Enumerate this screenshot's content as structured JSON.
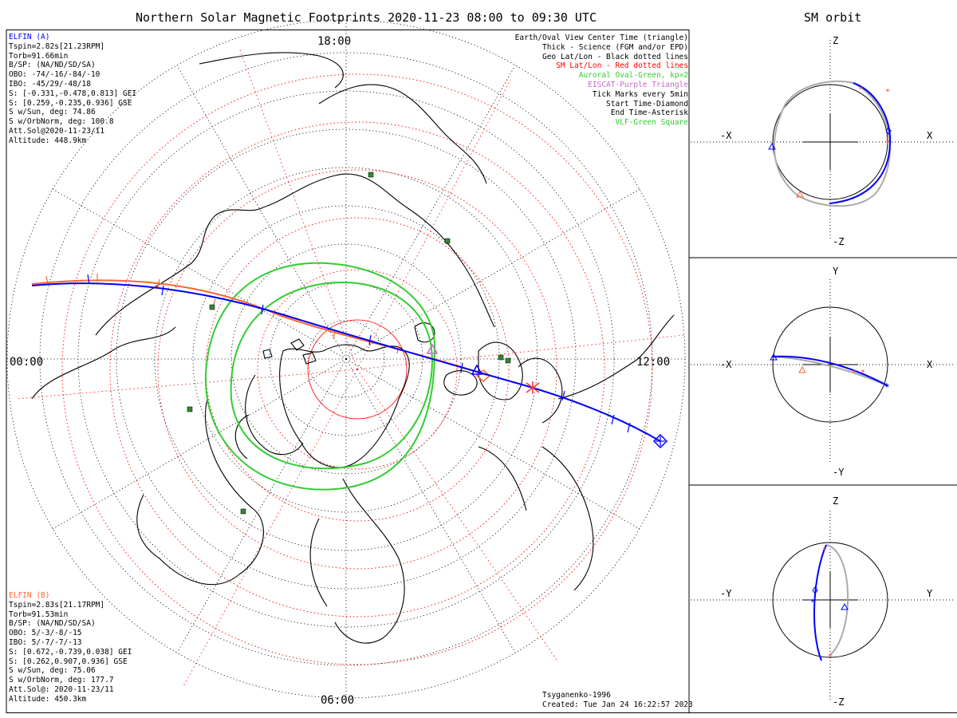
{
  "title": "Northern Solar Magnetic Footprints 2020-11-23 08:00 to 09:30 UTC",
  "orbit_title": "SM orbit",
  "clock_labels": {
    "top": "18:00",
    "left": "00:00",
    "right": "12:00",
    "bottom": "06:00"
  },
  "legend": [
    {
      "text": "Earth/Oval View Center Time (triangle)",
      "color": "#000000"
    },
    {
      "text": "Thick - Science (FGM and/or EPD)",
      "color": "#000000"
    },
    {
      "text": "Geo Lat/Lon - Black dotted lines",
      "color": "#000000"
    },
    {
      "text": "SM Lat/Lon - Red dotted lines",
      "color": "#ff0000"
    },
    {
      "text": "Auroral Oval-Green, kp=2",
      "color": "#33cc33"
    },
    {
      "text": "EISCAT-Purple Triangle",
      "color": "#cc66cc"
    },
    {
      "text": "Tick Marks every 5min",
      "color": "#000000"
    },
    {
      "text": "Start Time-Diamond",
      "color": "#000000"
    },
    {
      "text": "End Time-Asterisk",
      "color": "#000000"
    },
    {
      "text": "VLF-Green Square",
      "color": "#33cc33"
    }
  ],
  "elfin_a": {
    "name": "ELFIN (A)",
    "color": "#0000ff",
    "lines": [
      "Tspin=2.82s[21.23RPM]",
      "Torb=91.66min",
      "B/SP: (NA/ND/SD/SA)",
      "OBO: -74/-16/-84/-10",
      "IBO: -45/29/-48/18",
      "S: [-0.331,-0.478,0.813] GEI",
      "S: [0.259,-0.235,0.936] GSE",
      "S w/Sun, deg: 74.86",
      "S w/OrbNorm, deg: 100.8",
      "Att.Sol@2020-11-23/11",
      "Altitude: 448.9km"
    ]
  },
  "elfin_b": {
    "name": "ELFIN (B)",
    "color": "#ff6633",
    "lines": [
      "Tspin=2.83s[21.17RPM]",
      "Torb=91.53min",
      "B/SP: (NA/ND/SD/SA)",
      "OBO: 5/-3/-8/-15",
      "IBO: 5/-7/-7/-13",
      "S: [0.672,-0.739,0.038] GEI",
      "S: [0.262,0.907,0.936] GSE",
      "S w/Sun, deg: 75.06",
      "S w/OrbNorm, deg: 177.7",
      "Att.Sol@: 2020-11-23/11",
      "Altitude: 450.3km"
    ]
  },
  "footer": {
    "model": "Tsyganenko-1996",
    "created": "Created: Tue Jan 24 16:22:57 2023"
  },
  "panels": [
    {
      "top": "Z",
      "bottom": "-Z",
      "left": "-X",
      "right": "X"
    },
    {
      "top": "Y",
      "bottom": "-Y",
      "left": "-X",
      "right": "X"
    },
    {
      "top": "Z",
      "bottom": "-Z",
      "left": "-Y",
      "right": "Y"
    }
  ],
  "colors": {
    "blue": "#0000ff",
    "red": "#ff0000",
    "orange": "#ff6633",
    "green": "#33cc33",
    "gray": "#aaaaaa",
    "purple": "#cc66cc",
    "vlf": "#338833"
  }
}
